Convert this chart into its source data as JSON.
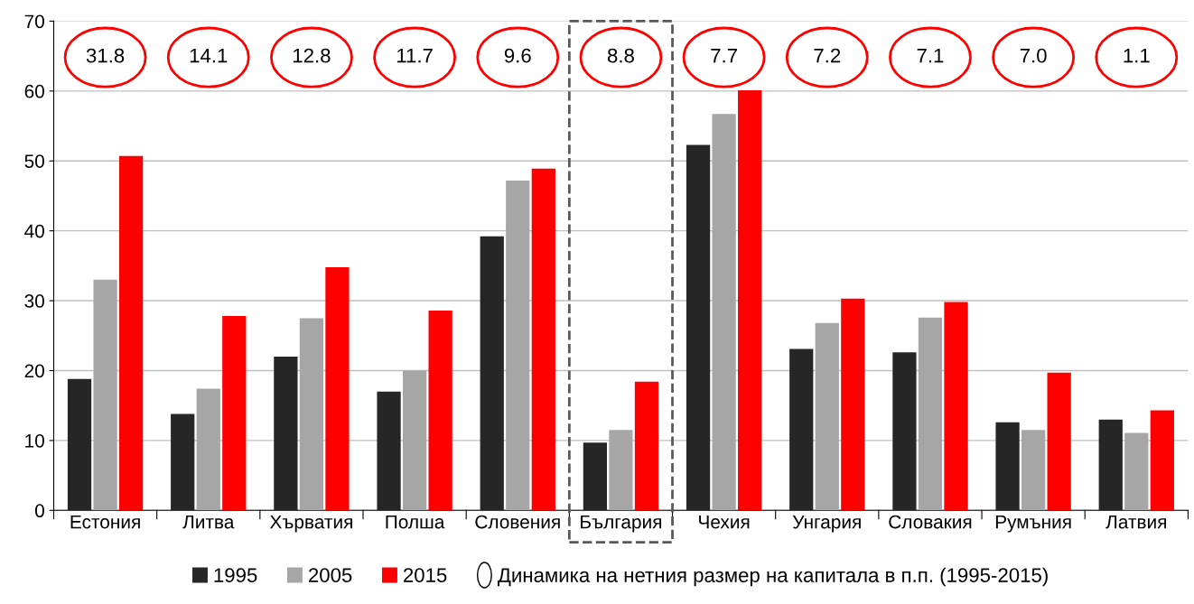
{
  "chart_data": {
    "type": "bar",
    "categories": [
      "Естония",
      "Литва",
      "Хърватия",
      "Полша",
      "Словения",
      "България",
      "Чехия",
      "Унгария",
      "Словакия",
      "Румъния",
      "Латвия"
    ],
    "series": [
      {
        "name": "1995",
        "color": "#262626",
        "values": [
          18.8,
          13.8,
          22.0,
          17.0,
          39.2,
          9.7,
          52.3,
          23.1,
          22.6,
          12.6,
          13.0
        ]
      },
      {
        "name": "2005",
        "color": "#a6a6a6",
        "values": [
          33.0,
          17.4,
          27.5,
          20.0,
          47.2,
          11.5,
          56.7,
          26.8,
          27.6,
          11.5,
          11.1
        ]
      },
      {
        "name": "2015",
        "color": "#ff0000",
        "values": [
          50.7,
          27.8,
          34.8,
          28.6,
          48.9,
          18.4,
          60.1,
          30.3,
          29.8,
          19.7,
          14.3
        ]
      }
    ],
    "annotations": [
      "Динамика на нетния размер на капитала в п.п. (1995-2015)",
      "31.8",
      "14.1",
      "12.8",
      "11.7",
      "9.6",
      "8.8",
      "7.7",
      "7.2",
      "7.1",
      "7.0",
      "1.1"
    ],
    "ylim": [
      0,
      70
    ],
    "yticks": [
      0,
      10,
      20,
      30,
      40,
      50,
      60,
      70
    ],
    "grid": "y",
    "legend": "bottom"
  }
}
